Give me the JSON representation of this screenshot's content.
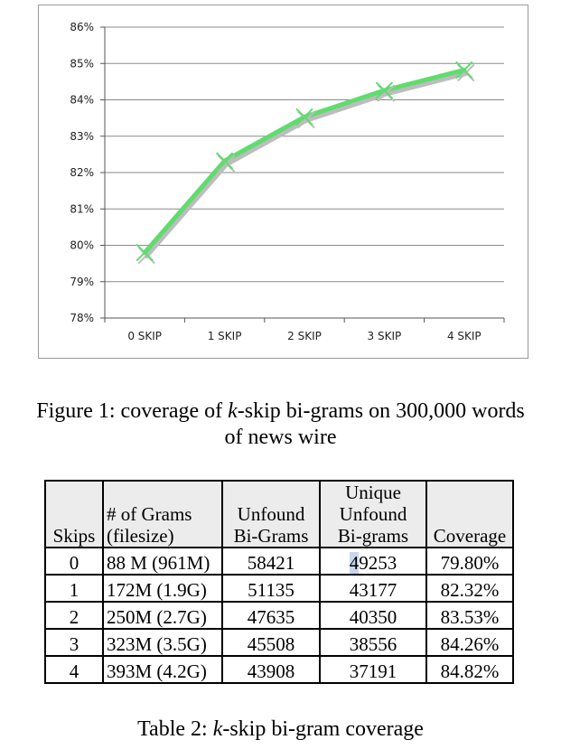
{
  "chart_data": {
    "type": "line",
    "categories": [
      "0 SKIP",
      "1 SKIP",
      "2 SKIP",
      "3 SKIP",
      "4 SKIP"
    ],
    "values": [
      79.8,
      82.32,
      83.53,
      84.26,
      84.82
    ],
    "ylim": [
      78,
      86
    ],
    "yticks": [
      "78%",
      "79%",
      "80%",
      "81%",
      "82%",
      "83%",
      "84%",
      "85%",
      "86%"
    ],
    "grid": true,
    "legend": "none",
    "line_color": "#5fdc6e",
    "shadow_color": "#bdbdbd",
    "title": "",
    "xlabel": "",
    "ylabel": ""
  },
  "figure_caption": {
    "prefix": "Figure 1: coverage of ",
    "emph": "k",
    "suffix": "-skip bi-grams on 300,000 words",
    "line2": "of news wire"
  },
  "table": {
    "headers": [
      [
        "Skips"
      ],
      [
        "# of Grams",
        "(filesize)"
      ],
      [
        "Unfound",
        "Bi-Grams"
      ],
      [
        "Unique",
        "Unfound",
        "Bi-grams"
      ],
      [
        "Coverage"
      ]
    ],
    "rows": [
      [
        "0",
        "88 M (961M)",
        "58421",
        "49253",
        "79.80%"
      ],
      [
        "1",
        "172M (1.9G)",
        "51135",
        "43177",
        "82.32%"
      ],
      [
        "2",
        "250M (2.7G)",
        "47635",
        "40350",
        "83.53%"
      ],
      [
        "3",
        "323M (3.5G)",
        "45508",
        "38556",
        "84.26%"
      ],
      [
        "4",
        "393M (4.2G)",
        "43908",
        "37191",
        "84.82%"
      ]
    ]
  },
  "table_caption": {
    "prefix": "Table 2: ",
    "emph": "k",
    "suffix": "-skip bi-gram coverage"
  }
}
